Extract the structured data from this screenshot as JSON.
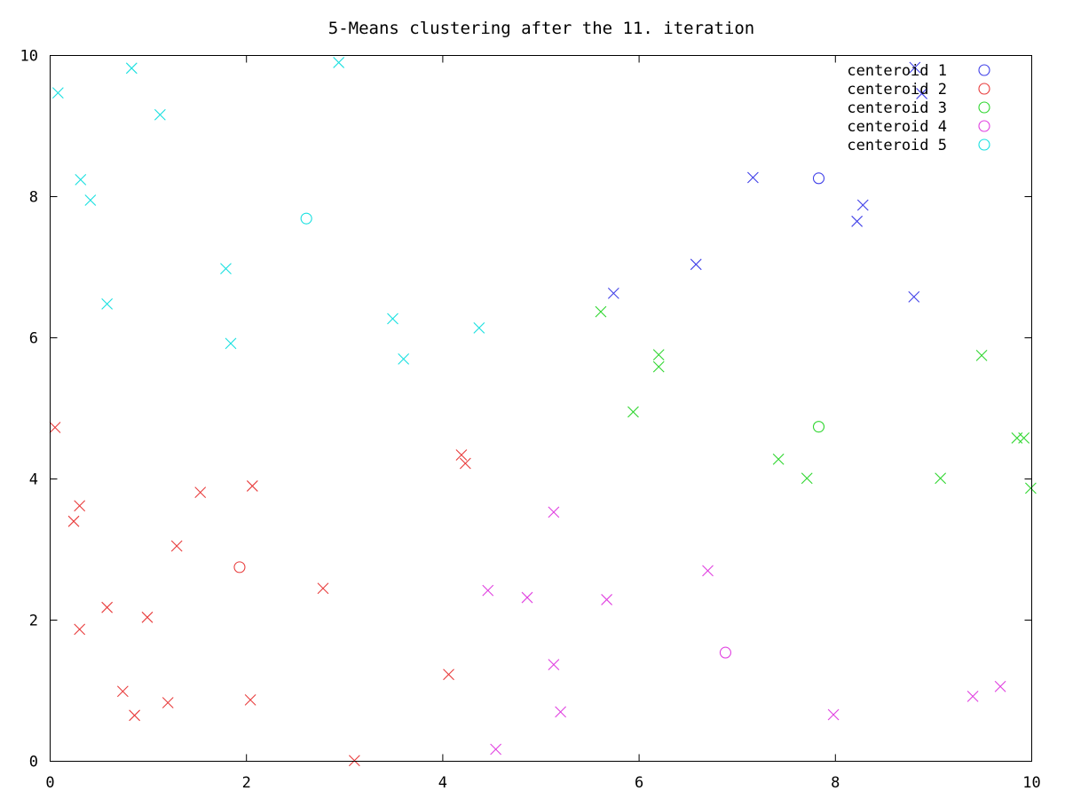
{
  "chart_data": {
    "type": "scatter",
    "title": "5-Means clustering after the 11. iteration",
    "xlabel": "",
    "ylabel": "",
    "xlim": [
      0,
      10
    ],
    "ylim": [
      0,
      10
    ],
    "x_ticks": [
      0,
      2,
      4,
      6,
      8,
      10
    ],
    "y_ticks": [
      0,
      2,
      4,
      6,
      8,
      10
    ],
    "grid": false,
    "legend_position": "top-right",
    "series": [
      {
        "name": "centeroid 1",
        "color": "#4040e8",
        "marker": "x",
        "centroid": [
          7.83,
          8.26
        ],
        "points": [
          [
            5.74,
            6.63
          ],
          [
            6.58,
            7.04
          ],
          [
            7.16,
            8.27
          ],
          [
            8.22,
            7.65
          ],
          [
            8.28,
            7.88
          ],
          [
            8.8,
            6.58
          ],
          [
            8.81,
            9.83
          ],
          [
            8.88,
            9.46
          ]
        ]
      },
      {
        "name": "centeroid 2",
        "color": "#e83c3c",
        "marker": "x",
        "centroid": [
          1.93,
          2.75
        ],
        "points": [
          [
            0.05,
            4.73
          ],
          [
            0.24,
            3.4
          ],
          [
            0.3,
            3.62
          ],
          [
            0.3,
            1.87
          ],
          [
            0.58,
            2.18
          ],
          [
            0.74,
            0.99
          ],
          [
            0.86,
            0.65
          ],
          [
            0.99,
            2.04
          ],
          [
            1.2,
            0.83
          ],
          [
            1.29,
            3.05
          ],
          [
            1.53,
            3.81
          ],
          [
            2.04,
            0.87
          ],
          [
            2.06,
            3.9
          ],
          [
            2.78,
            2.45
          ],
          [
            3.1,
            0.01
          ],
          [
            4.06,
            1.23
          ],
          [
            4.19,
            4.34
          ],
          [
            4.23,
            4.22
          ]
        ]
      },
      {
        "name": "centeroid 3",
        "color": "#2fd62f",
        "marker": "x",
        "centroid": [
          7.83,
          4.74
        ],
        "points": [
          [
            5.61,
            6.37
          ],
          [
            5.94,
            4.95
          ],
          [
            6.2,
            5.76
          ],
          [
            6.2,
            5.59
          ],
          [
            7.42,
            4.28
          ],
          [
            7.71,
            4.01
          ],
          [
            9.07,
            4.01
          ],
          [
            9.49,
            5.75
          ],
          [
            9.85,
            4.58
          ],
          [
            9.92,
            4.58
          ],
          [
            9.99,
            3.87
          ]
        ]
      },
      {
        "name": "centeroid 4",
        "color": "#e040e0",
        "marker": "x",
        "centroid": [
          6.88,
          1.54
        ],
        "points": [
          [
            4.46,
            2.42
          ],
          [
            4.54,
            0.17
          ],
          [
            4.86,
            2.32
          ],
          [
            5.13,
            3.53
          ],
          [
            5.13,
            1.37
          ],
          [
            5.2,
            0.7
          ],
          [
            5.67,
            2.29
          ],
          [
            6.7,
            2.7
          ],
          [
            7.98,
            0.66
          ],
          [
            9.4,
            0.92
          ],
          [
            9.68,
            1.06
          ]
        ]
      },
      {
        "name": "centeroid 5",
        "color": "#19e0e0",
        "marker": "x",
        "centroid": [
          2.61,
          7.69
        ],
        "points": [
          [
            0.08,
            9.47
          ],
          [
            0.31,
            8.24
          ],
          [
            0.41,
            7.95
          ],
          [
            0.58,
            6.48
          ],
          [
            0.83,
            9.82
          ],
          [
            1.12,
            9.16
          ],
          [
            1.79,
            6.98
          ],
          [
            1.84,
            5.92
          ],
          [
            2.94,
            9.9
          ],
          [
            3.49,
            6.27
          ],
          [
            3.6,
            5.7
          ],
          [
            4.37,
            6.14
          ]
        ]
      }
    ]
  }
}
